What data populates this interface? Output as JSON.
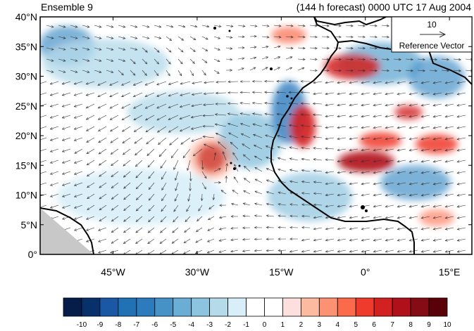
{
  "header": {
    "left": "Ensemble 9",
    "right": "(144 h forecast) 0000 UTC 17 Aug 2004"
  },
  "axes": {
    "y_ticks": [
      "0°",
      "5°N",
      "10°N",
      "15°N",
      "20°N",
      "25°N",
      "30°N",
      "35°N",
      "40°N"
    ],
    "y_values": [
      0,
      5,
      10,
      15,
      20,
      25,
      30,
      35,
      40
    ],
    "x_ticks": [
      "45°W",
      "30°W",
      "15°W",
      "0°",
      "15°E"
    ],
    "x_values": [
      -45,
      -30,
      -15,
      0,
      15
    ],
    "lon_range": [
      -58,
      19
    ],
    "lat_range": [
      0,
      40
    ]
  },
  "reference_vector": {
    "value": "10",
    "label": "Reference Vector"
  },
  "colorbar": {
    "labels": [
      "-10",
      "-9",
      "-8",
      "-7",
      "-6",
      "-5",
      "-4",
      "-3",
      "-2",
      "-1",
      "0",
      "1",
      "2",
      "3",
      "4",
      "5",
      "6",
      "7",
      "8",
      "9",
      "10"
    ],
    "colors": [
      "#061d4a",
      "#08306b",
      "#1a58a6",
      "#2171b5",
      "#2b7bbd",
      "#4692c7",
      "#6aadd5",
      "#8cc3de",
      "#b5dbeb",
      "#d8eef8",
      "#ffffff",
      "#ffffff",
      "#fde0dd",
      "#fcbba1",
      "#fc9272",
      "#fb6a4a",
      "#ef3b2c",
      "#d32020",
      "#b0101a",
      "#850c14",
      "#5a0008"
    ]
  },
  "colors": {
    "coast": "#000000",
    "vector": "#333333",
    "no_data": "#c8c8c8"
  }
}
